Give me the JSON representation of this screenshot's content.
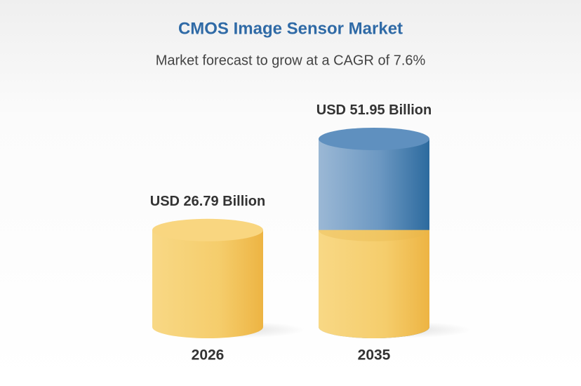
{
  "chart_data": {
    "type": "cylinder-bar",
    "title": "CMOS Image Sensor Market",
    "subtitle": "Market forecast to grow at a CAGR of 7.6%",
    "categories": [
      "2026",
      "2035"
    ],
    "values": [
      26.79,
      51.95
    ],
    "value_labels": [
      "USD 26.79 Billion",
      "USD 51.95 Billion"
    ],
    "colors": [
      "#f2c45c",
      "#3f78aa"
    ]
  }
}
